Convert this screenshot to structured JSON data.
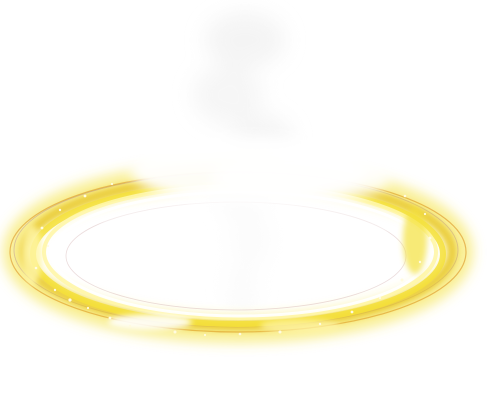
{
  "image": {
    "subject": "glowing-ring",
    "background_color": "#ffffff",
    "palette": {
      "glow_core": "#fff6a8",
      "glow_yellow": "#f4e13a",
      "glow_gold": "#e6c21c",
      "rim_orange": "#d98a1a",
      "rim_purple": "#9a6aa0",
      "sparkle": "#fffbe0",
      "smoke": "#e9e9e9"
    }
  }
}
